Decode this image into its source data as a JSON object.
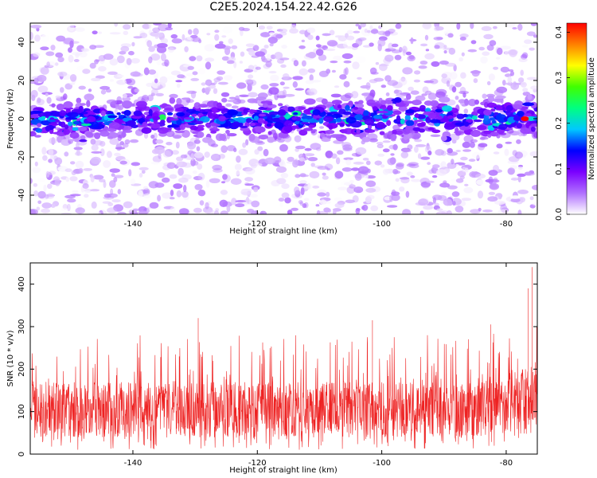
{
  "title": "C2E5.2024.154.22.42.G26",
  "colors": {
    "snr_line": "#ee2222",
    "frame": "#000000"
  },
  "chart_data": [
    {
      "type": "heatmap",
      "name": "spectrogram",
      "xlabel": "Height of straight line (km)",
      "ylabel": "Frequency (Hz)",
      "xlim": [
        -156.5,
        -75
      ],
      "ylim": [
        -50,
        50
      ],
      "x_ticks": [
        -140,
        -120,
        -100,
        -80
      ],
      "y_ticks": [
        -40,
        -20,
        0,
        20,
        40
      ],
      "grid": false,
      "colorbar": {
        "label": "Normalized spectral amplitude",
        "range": [
          0.0,
          0.42
        ],
        "ticks": [
          "0.0",
          "0.1",
          "0.2",
          "0.3",
          "0.4"
        ],
        "colormap": [
          "#ffffff",
          "#b070ff",
          "#7a00ff",
          "#0000ff",
          "#00c8ff",
          "#00ff80",
          "#40ff00",
          "#ffff00",
          "#ff8000",
          "#ff0000"
        ]
      },
      "band": {
        "center_hz": 0,
        "half_width_hz": 7,
        "peak_x_km": -77,
        "peak_value": 0.42
      }
    },
    {
      "type": "line",
      "name": "snr",
      "xlabel": "Height of straight line (km)",
      "ylabel": "SNR (10 * v/v)",
      "xlim": [
        -156.5,
        -75
      ],
      "ylim": [
        0,
        450
      ],
      "x_ticks": [
        -140,
        -120,
        -100,
        -80
      ],
      "y_ticks": [
        0,
        100,
        200,
        300,
        400
      ],
      "grid": false,
      "typical_range": [
        40,
        170
      ],
      "notable_peaks": [
        {
          "x": -129.5,
          "y": 320
        },
        {
          "x": -101.5,
          "y": 315
        },
        {
          "x": -82.5,
          "y": 305
        },
        {
          "x": -76.5,
          "y": 390
        },
        {
          "x": -75.8,
          "y": 440
        }
      ]
    }
  ]
}
